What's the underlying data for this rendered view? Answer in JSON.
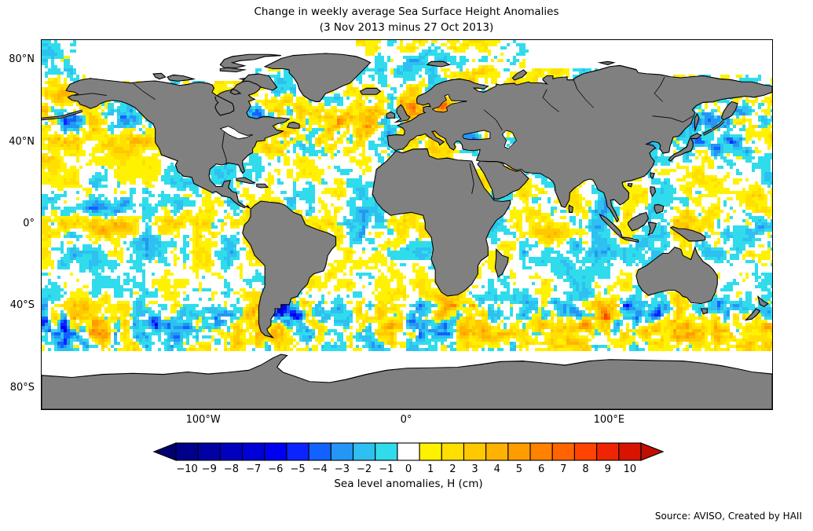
{
  "title": {
    "line1": "Change in weekly average Sea Surface Height Anomalies",
    "line2": "(3 Nov 2013 minus 27 Oct 2013)"
  },
  "map": {
    "y_ticks": [
      {
        "label": "80°N",
        "lat": 80
      },
      {
        "label": "40°N",
        "lat": 40
      },
      {
        "label": "0°",
        "lat": 0
      },
      {
        "label": "40°S",
        "lat": -40
      },
      {
        "label": "80°S",
        "lat": -80
      }
    ],
    "x_ticks": [
      {
        "label": "100°W",
        "lon": -100
      },
      {
        "label": "0°",
        "lon": 0
      },
      {
        "label": "100°E",
        "lon": 100
      }
    ],
    "land_color": "#808080",
    "coast_color": "#000000",
    "no_data_color": "#ffffff",
    "frame_color": "#000000"
  },
  "colorbar": {
    "label": "Sea level anomalies, H (cm)",
    "tick_labels": [
      "−10",
      "−9",
      "−8",
      "−7",
      "−6",
      "−5",
      "−4",
      "−3",
      "−2",
      "−1",
      "0",
      "1",
      "2",
      "3",
      "4",
      "5",
      "6",
      "7",
      "8",
      "9",
      "10"
    ],
    "tick_values": [
      -10,
      -9,
      -8,
      -7,
      -6,
      -5,
      -4,
      -3,
      -2,
      -1,
      0,
      1,
      2,
      3,
      4,
      5,
      6,
      7,
      8,
      9,
      10
    ],
    "colors": [
      "#00008B",
      "#0000A4",
      "#0000BE",
      "#0000D8",
      "#0000F1",
      "#0B24FF",
      "#1262FF",
      "#2496F5",
      "#2EC0F0",
      "#30DCEC",
      "#FFFFFF",
      "#FFF200",
      "#FFDF00",
      "#FFC900",
      "#FFB300",
      "#FF9C00",
      "#FF8200",
      "#FF6400",
      "#FF4300",
      "#EE2500",
      "#D81400"
    ],
    "extend_left_color": "#000072",
    "extend_right_color": "#C00E00",
    "outline_color": "#000000"
  },
  "source": "Source: AVISO, Created by HAII",
  "chart_data": {
    "type": "heatmap",
    "title": "Change in weekly average Sea Surface Height Anomalies",
    "subtitle": "(3 Nov 2013 minus 27 Oct 2013)",
    "projection": "equirectangular world map",
    "x_axis": {
      "tick_labels": [
        "100°W",
        "0°",
        "100°E"
      ],
      "range_deg": [
        -180,
        180
      ]
    },
    "y_axis": {
      "tick_labels": [
        "80°N",
        "40°N",
        "0°",
        "40°S",
        "80°S"
      ],
      "range_deg": [
        -90,
        90
      ]
    },
    "value_units": "cm",
    "value_range_displayed": [
      -10,
      10
    ],
    "colorbar_label": "Sea level anomalies, H (cm)",
    "colorbar_extend": "both",
    "grid": false,
    "legend_position": "horizontal colorbar below map",
    "notable_features": [
      "Strong positive anomaly (+6 to +10 cm) over the North Sea and Baltic Sea",
      "Positive anomaly patch (+4 to +10 cm) near the Bering Strait",
      "Orange positive band along the central equatorial Pacific with blue negative patches to its north",
      "High-variance eddy fields (±5 to ±10 cm) in Brazil-Malvinas confluence, Agulhas retroflection, Gulf Stream, Kuroshio and the Antarctic Circumpolar Current",
      "Most open ocean within ±3 cm (white, pale yellow, cyan speckle)",
      "No data (white) poleward of about 62°S and over central Arctic sea-ice regions; land shown gray"
    ]
  }
}
